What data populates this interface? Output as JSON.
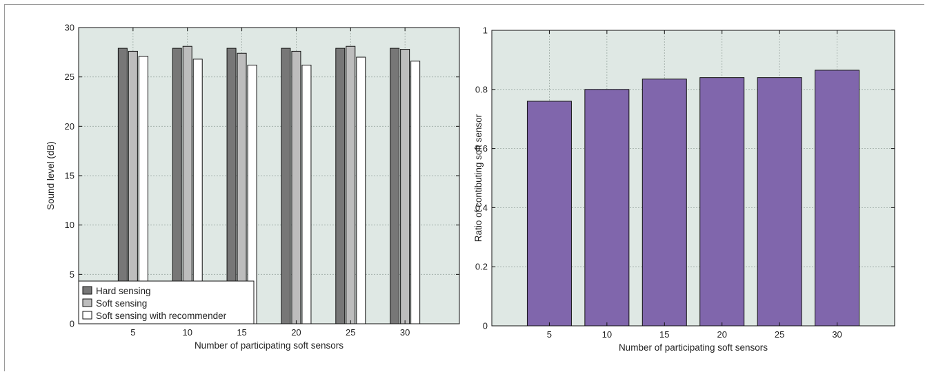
{
  "chart_data": [
    {
      "type": "bar",
      "title": "",
      "xlabel": "Number of participating soft sensors",
      "ylabel": "Sound level (dB)",
      "categories": [
        "5",
        "10",
        "15",
        "20",
        "25",
        "30"
      ],
      "xlim": [
        0,
        35
      ],
      "ylim": [
        0,
        30
      ],
      "yticks": [
        "0",
        "5",
        "10",
        "15",
        "20",
        "25",
        "30"
      ],
      "grid": true,
      "legend_position": "bottom-left",
      "series": [
        {
          "name": "Hard sensing",
          "color": "#777777",
          "values": [
            27.9,
            27.9,
            27.9,
            27.9,
            27.9,
            27.9
          ]
        },
        {
          "name": "Soft sensing",
          "color": "#bdbdbd",
          "values": [
            27.6,
            28.1,
            27.4,
            27.6,
            28.1,
            27.8
          ]
        },
        {
          "name": "Soft sensing with recommender",
          "color": "#ffffff",
          "values": [
            27.1,
            26.8,
            26.2,
            26.2,
            27.0,
            26.6
          ]
        }
      ]
    },
    {
      "type": "bar",
      "title": "",
      "xlabel": "Number of participating soft sensors",
      "ylabel": "Ratio of contibuting soft sensor",
      "categories": [
        "5",
        "10",
        "15",
        "20",
        "25",
        "30"
      ],
      "xlim": [
        0,
        35
      ],
      "ylim": [
        0,
        1
      ],
      "yticks": [
        "0",
        "0.2",
        "0.4",
        "0.6",
        "0.8",
        "1"
      ],
      "grid": true,
      "series": [
        {
          "color": "#8066ac",
          "values": [
            0.76,
            0.8,
            0.835,
            0.84,
            0.84,
            0.865
          ]
        }
      ]
    }
  ],
  "style": {
    "plot_bg": "#dfe8e4",
    "grid_color": "#9aa7a2",
    "bar_edge": "#111111"
  }
}
